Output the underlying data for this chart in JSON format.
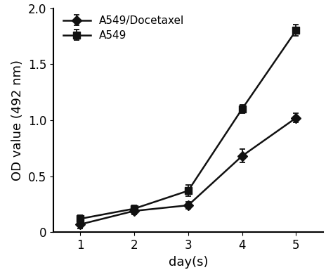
{
  "days": [
    1,
    2,
    3,
    4,
    5
  ],
  "docetaxel_values": [
    0.07,
    0.19,
    0.24,
    0.68,
    1.02
  ],
  "docetaxel_errors": [
    0.04,
    0.03,
    0.03,
    0.06,
    0.04
  ],
  "a549_values": [
    0.12,
    0.21,
    0.37,
    1.1,
    1.8
  ],
  "a549_errors": [
    0.03,
    0.03,
    0.05,
    0.04,
    0.05
  ],
  "xlabel": "day(s)",
  "ylabel": "OD value (492 nm)",
  "xlim": [
    0.5,
    5.5
  ],
  "ylim": [
    0,
    2.0
  ],
  "yticks": [
    0,
    0.5,
    1.0,
    1.5,
    2.0
  ],
  "ytick_labels": [
    "0",
    "0.5",
    "1.0",
    "1.5",
    "2.0"
  ],
  "xticks": [
    1,
    2,
    3,
    4,
    5
  ],
  "legend_labels": [
    "A549/Docetaxel",
    "A549"
  ],
  "line_color": "#111111",
  "marker_docetaxel": "D",
  "marker_a549": "s",
  "marker_size": 7,
  "line_width": 1.8,
  "capsize": 3,
  "fontsize_label": 13,
  "fontsize_tick": 12,
  "fontsize_legend": 11
}
